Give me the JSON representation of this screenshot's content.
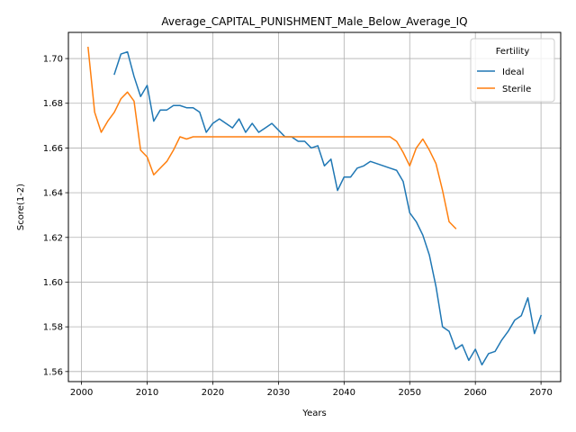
{
  "chart_data": {
    "type": "line",
    "title": "Average_CAPITAL_PUNISHMENT_Male_Below_Average_IQ",
    "xlabel": "Years",
    "ylabel": "Score(1-2)",
    "xlim": [
      1998,
      2073
    ],
    "ylim": [
      1.5555,
      1.7117
    ],
    "xticks": [
      2000,
      2010,
      2020,
      2030,
      2040,
      2050,
      2060,
      2070
    ],
    "yticks": [
      1.56,
      1.58,
      1.6,
      1.62,
      1.64,
      1.66,
      1.68,
      1.7
    ],
    "ytick_labels": [
      "1.56",
      "1.58",
      "1.60",
      "1.62",
      "1.64",
      "1.66",
      "1.68",
      "1.70"
    ],
    "grid": true,
    "legend": {
      "title": "Fertility",
      "position": "top-right"
    },
    "series": [
      {
        "name": "Ideal",
        "color": "#1f77b4",
        "x": [
          2005,
          2006,
          2007,
          2008,
          2009,
          2010,
          2011,
          2012,
          2013,
          2014,
          2015,
          2016,
          2017,
          2018,
          2019,
          2020,
          2021,
          2022,
          2023,
          2024,
          2025,
          2026,
          2027,
          2028,
          2029,
          2030,
          2031,
          2032,
          2033,
          2034,
          2035,
          2036,
          2037,
          2038,
          2039,
          2040,
          2041,
          2042,
          2043,
          2044,
          2045,
          2046,
          2047,
          2048,
          2049,
          2050,
          2051,
          2052,
          2053,
          2054,
          2055,
          2056,
          2057,
          2058,
          2059,
          2060,
          2061,
          2062,
          2063,
          2064,
          2065,
          2066,
          2067,
          2068,
          2069,
          2070
        ],
        "y": [
          1.693,
          1.702,
          1.703,
          1.692,
          1.683,
          1.688,
          1.672,
          1.677,
          1.677,
          1.679,
          1.679,
          1.678,
          1.678,
          1.676,
          1.667,
          1.671,
          1.673,
          1.671,
          1.669,
          1.673,
          1.667,
          1.671,
          1.667,
          1.669,
          1.671,
          1.668,
          1.665,
          1.665,
          1.663,
          1.663,
          1.66,
          1.661,
          1.652,
          1.655,
          1.641,
          1.647,
          1.647,
          1.651,
          1.652,
          1.654,
          1.653,
          1.652,
          1.651,
          1.65,
          1.645,
          1.631,
          1.627,
          1.621,
          1.612,
          1.598,
          1.58,
          1.578,
          1.57,
          1.572,
          1.565,
          1.57,
          1.563,
          1.568,
          1.569,
          1.574,
          1.578,
          1.583,
          1.585,
          1.593,
          1.577,
          1.585
        ]
      },
      {
        "name": "Sterile",
        "color": "#ff7f0e",
        "x": [
          2001,
          2002,
          2003,
          2004,
          2005,
          2006,
          2007,
          2008,
          2009,
          2010,
          2011,
          2012,
          2013,
          2014,
          2015,
          2016,
          2017,
          2018,
          2019,
          2020,
          2021,
          2022,
          2023,
          2024,
          2025,
          2026,
          2027,
          2028,
          2029,
          2030,
          2031,
          2032,
          2033,
          2034,
          2035,
          2036,
          2037,
          2038,
          2039,
          2040,
          2041,
          2042,
          2043,
          2044,
          2045,
          2046,
          2047,
          2048,
          2049,
          2050,
          2051,
          2052,
          2053,
          2054,
          2055,
          2056,
          2057
        ],
        "y": [
          1.705,
          1.676,
          1.667,
          1.672,
          1.676,
          1.682,
          1.685,
          1.681,
          1.659,
          1.656,
          1.648,
          1.651,
          1.654,
          1.659,
          1.665,
          1.664,
          1.665,
          1.665,
          1.665,
          1.665,
          1.665,
          1.665,
          1.665,
          1.665,
          1.665,
          1.665,
          1.665,
          1.665,
          1.665,
          1.665,
          1.665,
          1.665,
          1.665,
          1.665,
          1.665,
          1.665,
          1.665,
          1.665,
          1.665,
          1.665,
          1.665,
          1.665,
          1.665,
          1.665,
          1.665,
          1.665,
          1.665,
          1.663,
          1.658,
          1.652,
          1.66,
          1.664,
          1.659,
          1.653,
          1.641,
          1.627,
          1.624
        ]
      }
    ]
  }
}
